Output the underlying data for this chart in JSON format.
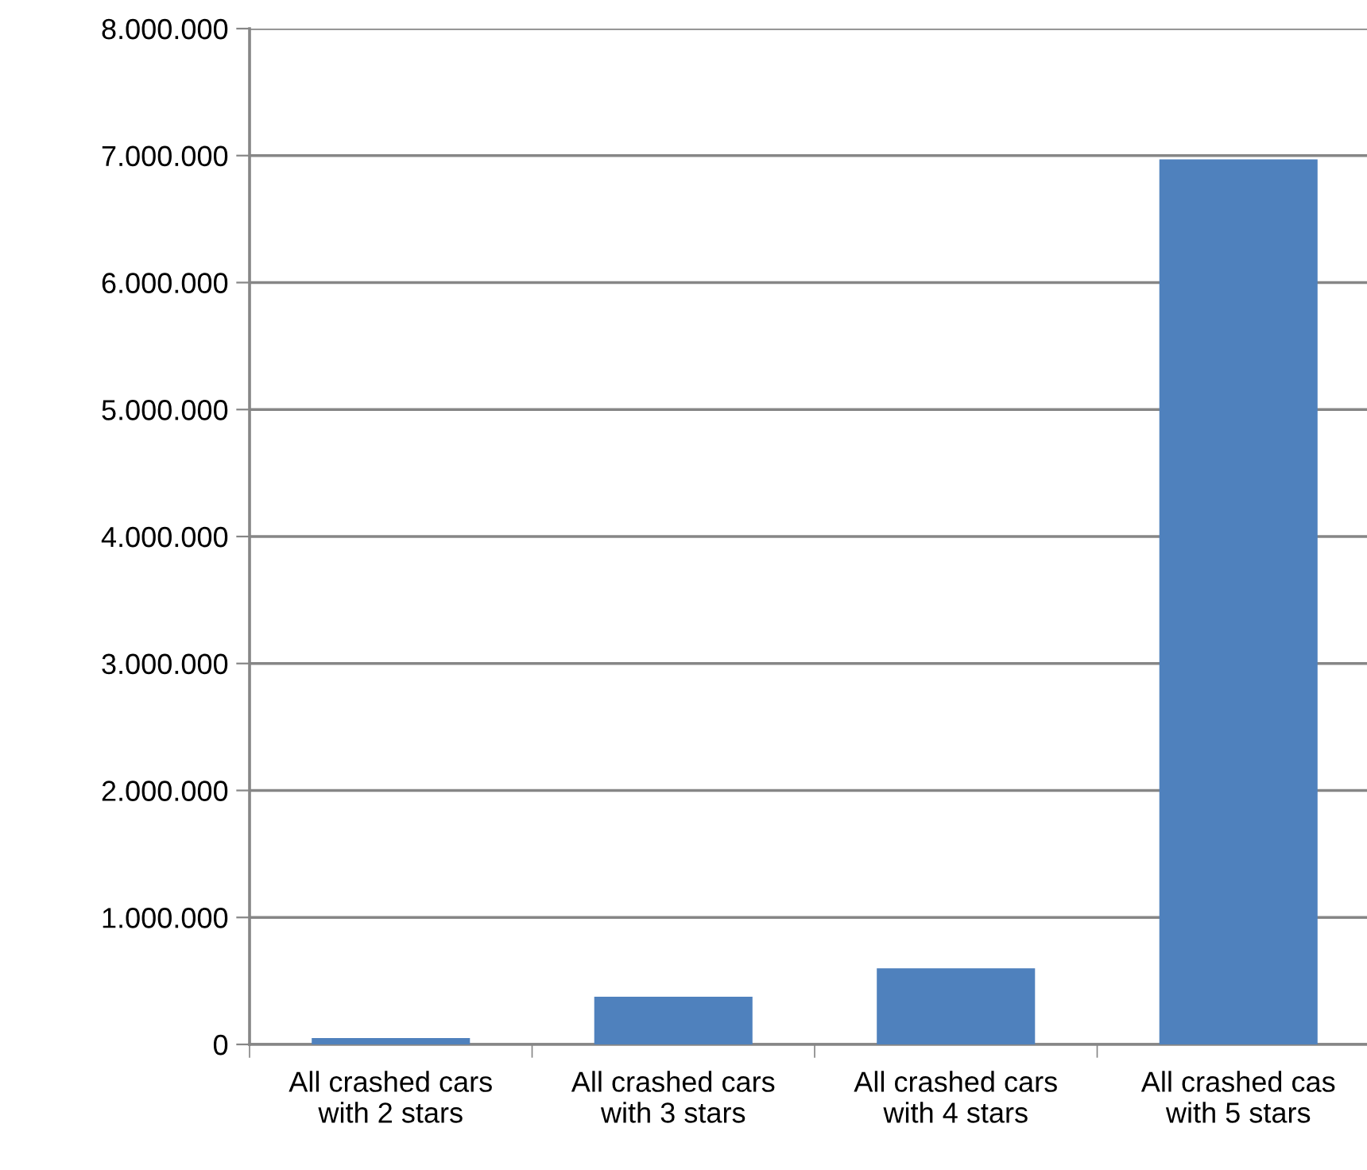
{
  "chart_data": {
    "type": "bar",
    "categories": [
      "All crashed cars\nwith 2 stars",
      "All crashed cars\nwith 3 stars",
      "All crashed cars\nwith 4 stars",
      "All crashed cas\nwith 5 stars"
    ],
    "values": [
      50000,
      375000,
      600000,
      6970000
    ],
    "color": "#4f81bd",
    "ylim": [
      0,
      8000000
    ],
    "yticks": [
      0,
      {
        "value": 1000000,
        "label": "1.000.000"
      },
      {
        "value": 2000000,
        "label": "2.000.000"
      },
      {
        "value": 3000000,
        "label": "3.000.000"
      },
      {
        "value": 4000000,
        "label": "4.000.000"
      },
      {
        "value": 5000000,
        "label": "5.000.000"
      },
      {
        "value": 6000000,
        "label": "6.000.000"
      },
      {
        "value": 7000000,
        "label": "7.000.000"
      },
      {
        "value": 8000000,
        "label": "8.000.000"
      }
    ],
    "grid": "y",
    "legend": false
  }
}
